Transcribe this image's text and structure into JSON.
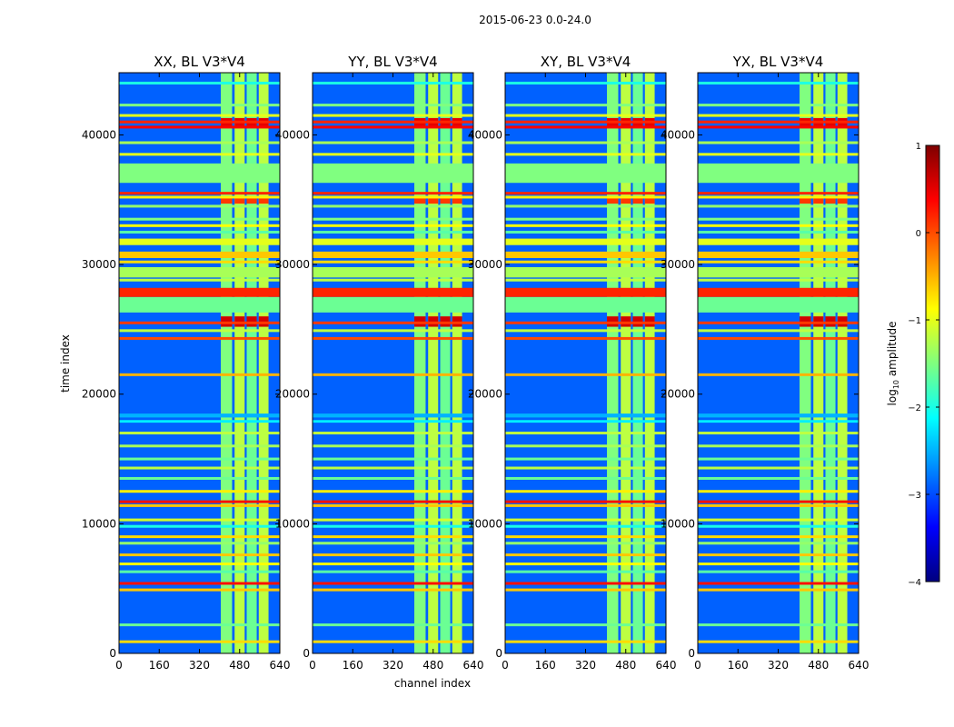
{
  "chart_data": {
    "type": "heatmap",
    "suptitle": "2015-06-23 0.0-24.0",
    "xlabel": "channel index",
    "ylabel": "time index",
    "xlim": [
      0,
      640
    ],
    "ylim": [
      0,
      44800
    ],
    "xticks": [
      0,
      160,
      320,
      480,
      640
    ],
    "yticks": [
      0,
      10000,
      20000,
      30000,
      40000
    ],
    "colorbar": {
      "label": "log₁₀ amplitude",
      "label_base": "log",
      "label_sub": "10",
      "label_rest": " amplitude",
      "range": [
        -4,
        1
      ],
      "ticks": [
        1,
        0,
        -1,
        -2,
        -3,
        -4
      ],
      "tick_labels": [
        "1",
        "0",
        "−1",
        "−2",
        "−3",
        "−4"
      ],
      "colormap": "jet",
      "colors": [
        "#00007f",
        "#0000ff",
        "#007fff",
        "#00ffff",
        "#7fff7f",
        "#ffff00",
        "#ff7f00",
        "#ff0000",
        "#7f0000"
      ]
    },
    "panels": [
      {
        "title": "XX, BL V3*V4",
        "pol": "XX"
      },
      {
        "title": "YY, BL V3*V4",
        "pol": "YY"
      },
      {
        "title": "XY, BL V3*V4",
        "pol": "XY"
      },
      {
        "title": "YX, BL V3*V4",
        "pol": "YX"
      }
    ],
    "background_level": -2.9,
    "rfi_columns": [
      {
        "x0": 405,
        "x1": 450,
        "level": -1.5
      },
      {
        "x0": 460,
        "x1": 500,
        "level": -1.2
      },
      {
        "x0": 508,
        "x1": 548,
        "level": -1.6
      },
      {
        "x0": 556,
        "x1": 595,
        "level": -1.2
      }
    ],
    "broadband_bands": [
      {
        "t0": 36300,
        "t1": 37800,
        "level": -1.5
      },
      {
        "t0": 26300,
        "t1": 27500,
        "level": -1.6
      },
      {
        "t0": 27500,
        "t1": 28200,
        "level": 0.2
      },
      {
        "t0": 29000,
        "t1": 29800,
        "level": -1.3
      },
      {
        "t0": 30500,
        "t1": 31000,
        "level": -0.6
      },
      {
        "t0": 31500,
        "t1": 32000,
        "level": -1.0
      },
      {
        "t0": 18200,
        "t1": 18500,
        "level": -2.5
      },
      {
        "t0": 17800,
        "t1": 18000,
        "level": -2.2
      }
    ],
    "rfi_lines": [
      {
        "t": 44000,
        "level": -2.0
      },
      {
        "t": 42300,
        "level": -1.5
      },
      {
        "t": 41500,
        "level": -1.0
      },
      {
        "t": 41000,
        "level": 0.2
      },
      {
        "t": 40600,
        "level": 0.4
      },
      {
        "t": 39400,
        "level": -1.3
      },
      {
        "t": 38500,
        "level": -1.0
      },
      {
        "t": 35500,
        "level": 0.2
      },
      {
        "t": 35200,
        "level": -0.8
      },
      {
        "t": 34500,
        "level": -1.4
      },
      {
        "t": 33500,
        "level": -1.5
      },
      {
        "t": 33000,
        "level": -0.9
      },
      {
        "t": 32500,
        "level": -1.7
      },
      {
        "t": 30200,
        "level": -0.7
      },
      {
        "t": 28800,
        "level": -1.2
      },
      {
        "t": 25500,
        "level": 0.1
      },
      {
        "t": 24900,
        "level": -1.2
      },
      {
        "t": 24300,
        "level": 0.0
      },
      {
        "t": 21500,
        "level": -0.5
      },
      {
        "t": 17000,
        "level": -1.2
      },
      {
        "t": 16000,
        "level": -1.3
      },
      {
        "t": 15000,
        "level": -1.6
      },
      {
        "t": 14300,
        "level": -1.2
      },
      {
        "t": 13500,
        "level": -1.6
      },
      {
        "t": 12500,
        "level": -0.8
      },
      {
        "t": 11700,
        "level": 0.3
      },
      {
        "t": 11400,
        "level": -0.6
      },
      {
        "t": 10300,
        "level": -1.1
      },
      {
        "t": 9800,
        "level": -2.0
      },
      {
        "t": 9000,
        "level": -0.7
      },
      {
        "t": 8500,
        "level": -1.4
      },
      {
        "t": 7600,
        "level": -0.6
      },
      {
        "t": 6900,
        "level": -0.9
      },
      {
        "t": 6300,
        "level": -1.7
      },
      {
        "t": 5400,
        "level": 0.3
      },
      {
        "t": 4900,
        "level": -0.6
      },
      {
        "t": 2200,
        "level": -1.6
      },
      {
        "t": 900,
        "level": -0.7
      }
    ],
    "hot_block_bands": [
      {
        "t0": 25200,
        "t1": 26000,
        "level": 0.6
      },
      {
        "t0": 40700,
        "t1": 41300,
        "level": 0.5
      },
      {
        "t0": 34700,
        "t1": 35200,
        "level": 0.1
      }
    ]
  }
}
